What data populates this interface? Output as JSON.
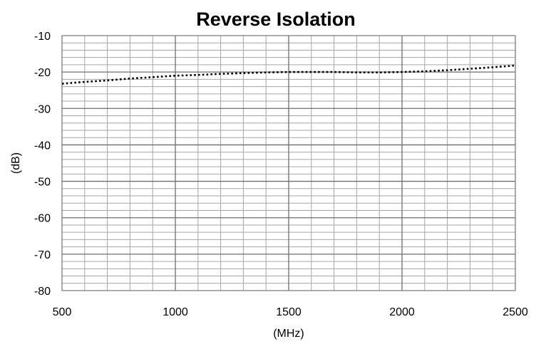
{
  "chart_data": {
    "type": "line",
    "title": "Reverse Isolation",
    "xlabel": "(MHz)",
    "ylabel": "(dB)",
    "xlim": [
      500,
      2500
    ],
    "ylim": [
      -80,
      -10
    ],
    "x_ticks": [
      "500",
      "1000",
      "1500",
      "2000",
      "2500"
    ],
    "y_ticks": [
      "-10",
      "-20",
      "-30",
      "-40",
      "-50",
      "-60",
      "-70",
      "-80"
    ],
    "grid": true,
    "legend": "none",
    "series": [
      {
        "line_style": "dotted",
        "color": "#000000",
        "x": [
          500,
          600,
          700,
          800,
          900,
          1000,
          1100,
          1200,
          1300,
          1400,
          1500,
          1600,
          1700,
          1800,
          1900,
          2000,
          2100,
          2200,
          2300,
          2400,
          2500
        ],
        "y": [
          -23.2,
          -22.7,
          -22.3,
          -21.8,
          -21.4,
          -21.0,
          -20.8,
          -20.5,
          -20.3,
          -20.1,
          -20.0,
          -20.0,
          -20.0,
          -20.1,
          -20.1,
          -20.0,
          -19.8,
          -19.5,
          -19.1,
          -18.7,
          -18.2
        ]
      }
    ]
  }
}
